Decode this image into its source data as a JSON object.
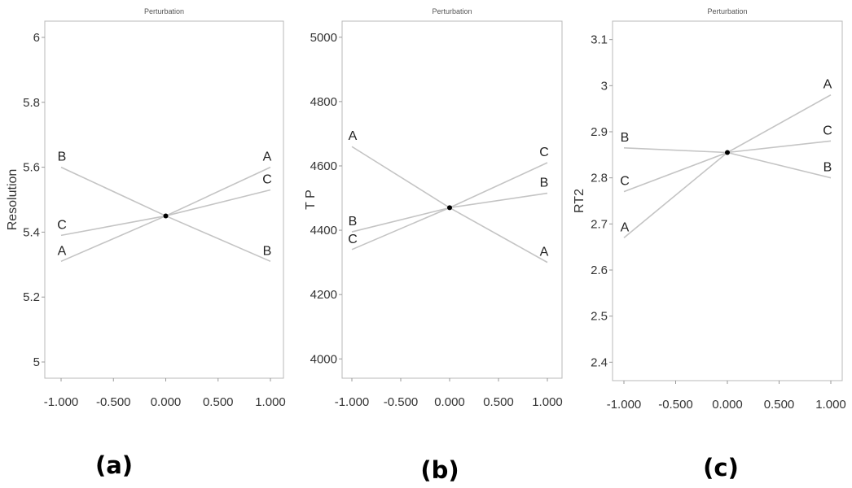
{
  "chart_data": [
    {
      "type": "line",
      "title": "Perturbation",
      "caption": "(a)",
      "xlabel": "",
      "ylabel": "Resolution",
      "xlim": [
        -1,
        1
      ],
      "ylim": [
        4.95,
        6.05
      ],
      "x_ticks": [
        "-1.000",
        "-0.500",
        "0.000",
        "0.500",
        "1.000"
      ],
      "y_ticks": [
        "6",
        "5.8",
        "5.6",
        "5.4",
        "5.2",
        "5"
      ],
      "center_point": [
        0,
        5.45
      ],
      "series": [
        {
          "name": "A",
          "x": [
            -1,
            0,
            1
          ],
          "y": [
            5.31,
            5.45,
            5.6
          ]
        },
        {
          "name": "B",
          "x": [
            -1,
            0,
            1
          ],
          "y": [
            5.6,
            5.45,
            5.31
          ]
        },
        {
          "name": "C",
          "x": [
            -1,
            0,
            1
          ],
          "y": [
            5.39,
            5.45,
            5.53
          ]
        }
      ]
    },
    {
      "type": "line",
      "title": "Perturbation",
      "caption": "(b)",
      "xlabel": "",
      "ylabel": "T P",
      "xlim": [
        -1,
        1
      ],
      "ylim": [
        3940,
        5050
      ],
      "x_ticks": [
        "-1.000",
        "-0.500",
        "0.000",
        "0.500",
        "1.000"
      ],
      "y_ticks": [
        "5000",
        "4800",
        "4600",
        "4400",
        "4200",
        "4000"
      ],
      "center_point": [
        0,
        4470
      ],
      "series": [
        {
          "name": "A",
          "x": [
            -1,
            0,
            1
          ],
          "y": [
            4660,
            4470,
            4300
          ]
        },
        {
          "name": "B",
          "x": [
            -1,
            0,
            1
          ],
          "y": [
            4395,
            4470,
            4515
          ]
        },
        {
          "name": "C",
          "x": [
            -1,
            0,
            1
          ],
          "y": [
            4340,
            4470,
            4610
          ]
        }
      ]
    },
    {
      "type": "line",
      "title": "Perturbation",
      "caption": "(c)",
      "xlabel": "",
      "ylabel": "RT2",
      "xlim": [
        -1,
        1
      ],
      "ylim": [
        2.36,
        3.14
      ],
      "x_ticks": [
        "-1.000",
        "-0.500",
        "0.000",
        "0.500",
        "1.000"
      ],
      "y_ticks": [
        "3.1",
        "3",
        "2.9",
        "2.8",
        "2.7",
        "2.6",
        "2.5",
        "2.4"
      ],
      "center_point": [
        0,
        2.855
      ],
      "series": [
        {
          "name": "A",
          "x": [
            -1,
            0,
            1
          ],
          "y": [
            2.67,
            2.855,
            2.98
          ]
        },
        {
          "name": "B",
          "x": [
            -1,
            0,
            1
          ],
          "y": [
            2.865,
            2.855,
            2.8
          ]
        },
        {
          "name": "C",
          "x": [
            -1,
            0,
            1
          ],
          "y": [
            2.77,
            2.855,
            2.88
          ]
        }
      ]
    }
  ],
  "colors": {
    "frame": "#b8b8b8",
    "series_line": "#c4c4c4",
    "text": "#333333",
    "center_point": "#000000"
  }
}
